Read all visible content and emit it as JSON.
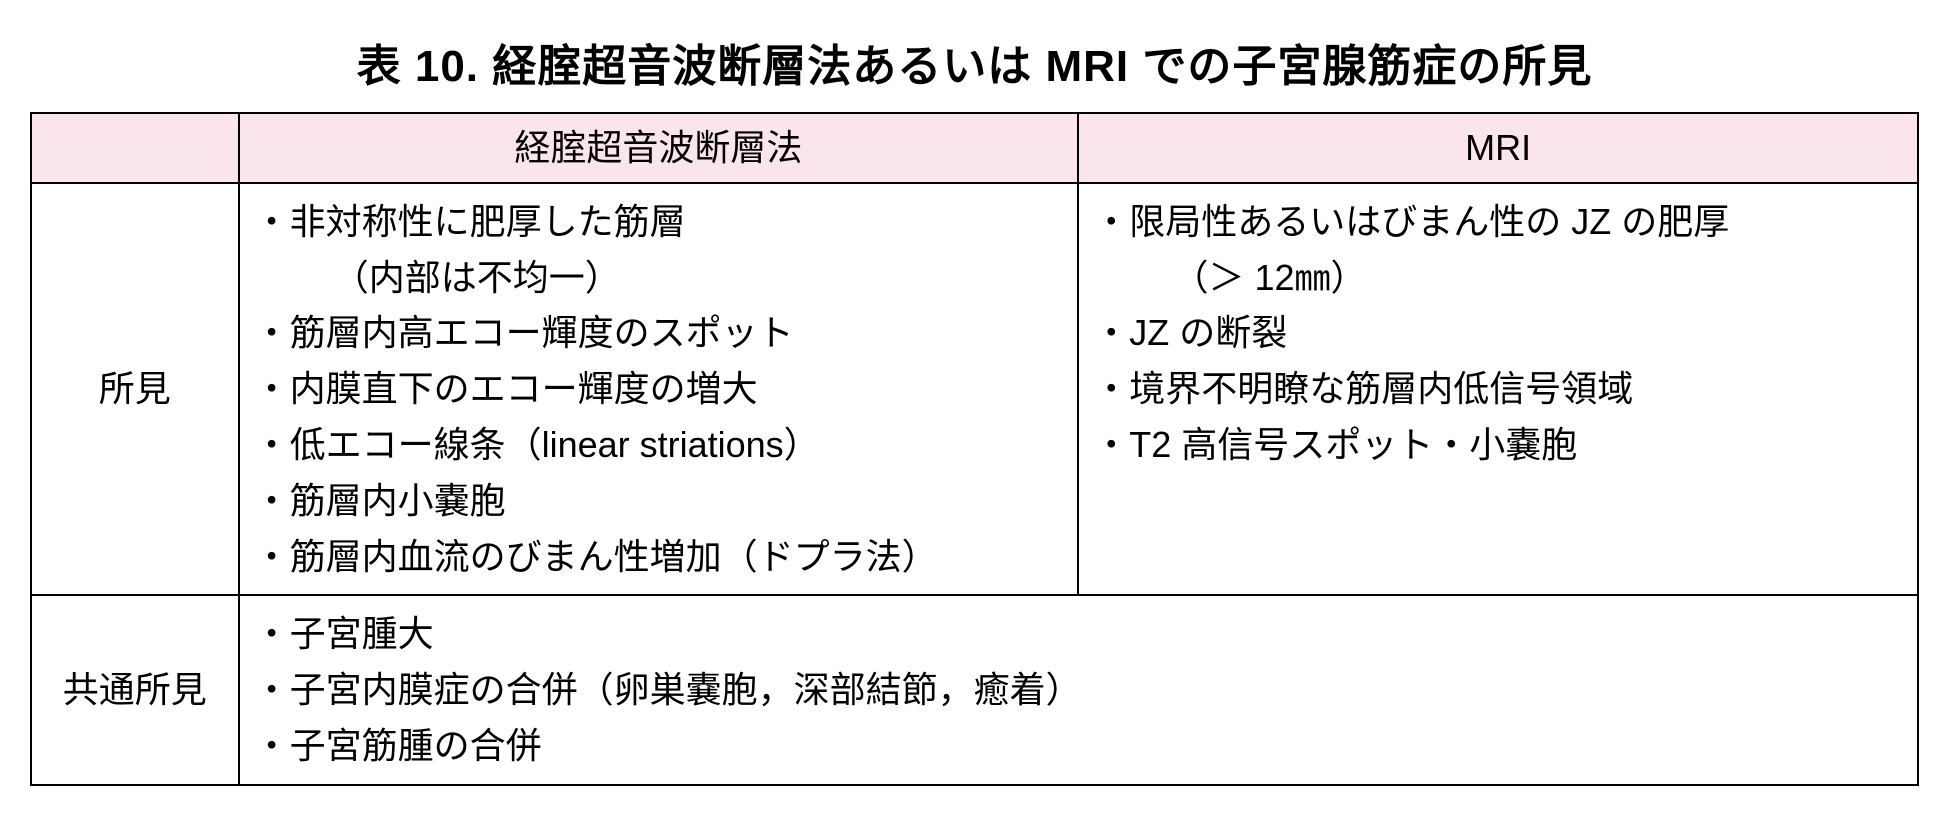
{
  "title": "表 10.   経腟超音波断層法あるいは MRI での子宮腺筋症の所見",
  "columns": {
    "col1": "経腟超音波断層法",
    "col2": "MRI"
  },
  "rows": {
    "findings": {
      "label": "所見",
      "usg": [
        {
          "text": "非対称性に肥厚した筋層",
          "sub": "（内部は不均一）"
        },
        {
          "text": "筋層内高エコー輝度のスポット"
        },
        {
          "text": "内膜直下のエコー輝度の増大"
        },
        {
          "text": "低エコー線条（linear striations）"
        },
        {
          "text": "筋層内小嚢胞"
        },
        {
          "text": "筋層内血流のびまん性増加（ドプラ法）"
        }
      ],
      "mri": [
        {
          "text": "限局性あるいはびまん性の JZ の肥厚",
          "sub": "（＞ 12㎜）"
        },
        {
          "text": "JZ の断裂"
        },
        {
          "text": "境界不明瞭な筋層内低信号領域"
        },
        {
          "text": "T2 高信号スポット・小嚢胞"
        }
      ]
    },
    "common": {
      "label": "共通所見",
      "items": [
        {
          "text": "子宮腫大"
        },
        {
          "text": "子宮内膜症の合併（卵巣嚢胞，深部結節，癒着）"
        },
        {
          "text": "子宮筋腫の合併"
        }
      ]
    }
  },
  "style": {
    "header_bg": "#fbe5ec",
    "border_color": "#000000",
    "text_color": "#000000",
    "title_fontsize": 44,
    "cell_fontsize": 36
  }
}
